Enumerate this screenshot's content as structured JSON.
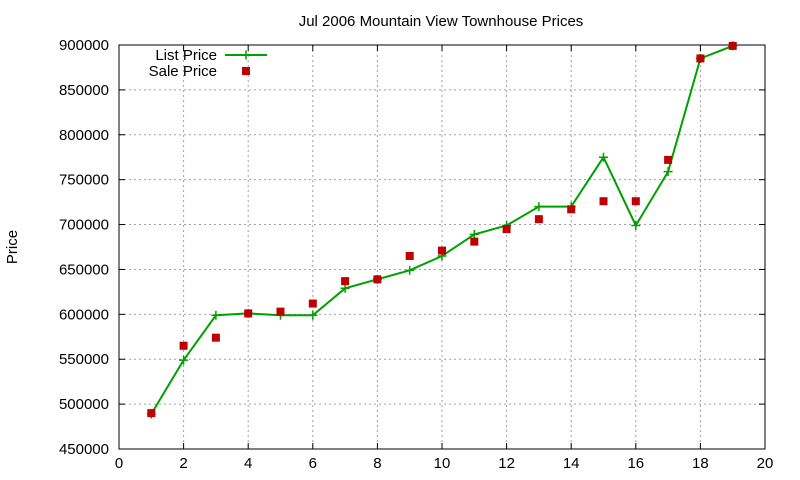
{
  "chart_data": {
    "type": "line",
    "title": "Jul 2006 Mountain View Townhouse Prices",
    "xlabel": "",
    "ylabel": "Price",
    "xlim": [
      0,
      20
    ],
    "ylim": [
      450000,
      900000
    ],
    "x_ticks": [
      0,
      2,
      4,
      6,
      8,
      10,
      12,
      14,
      16,
      18,
      20
    ],
    "y_ticks": [
      450000,
      500000,
      550000,
      600000,
      650000,
      700000,
      750000,
      800000,
      850000,
      900000
    ],
    "grid": true,
    "legend_position": "top-left",
    "series": [
      {
        "name": "List Price",
        "style": "linespoints",
        "color": "#00a000",
        "marker": "plus",
        "x": [
          1,
          2,
          3,
          4,
          5,
          6,
          7,
          8,
          9,
          10,
          11,
          12,
          13,
          14,
          15,
          16,
          17,
          18,
          19
        ],
        "y": [
          489000,
          549000,
          599000,
          601000,
          599000,
          599000,
          629000,
          639000,
          649000,
          665000,
          689000,
          699000,
          720000,
          720000,
          775000,
          699000,
          759000,
          885000,
          899000
        ]
      },
      {
        "name": "Sale Price",
        "style": "points",
        "color": "#c00000",
        "marker": "square",
        "x": [
          1,
          2,
          3,
          4,
          5,
          6,
          7,
          8,
          9,
          10,
          11,
          12,
          13,
          14,
          15,
          16,
          17,
          18,
          19
        ],
        "y": [
          490000,
          565000,
          574000,
          601000,
          603000,
          612000,
          637000,
          639000,
          665000,
          671000,
          681000,
          695000,
          706000,
          717000,
          726000,
          726000,
          772000,
          885000,
          899000
        ]
      }
    ]
  }
}
